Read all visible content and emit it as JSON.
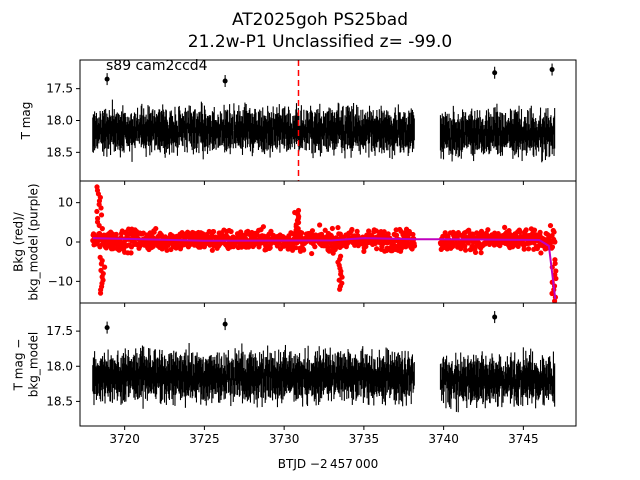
{
  "figure": {
    "title_line1": "AT2025goh  PS25bad",
    "title_line2": "21.2w-P1 Unclassified z= -99.0",
    "annotation": "s89 cam2ccd4",
    "xlabel": "BTJD −2 457 000"
  },
  "colors": {
    "data": "#000000",
    "bkg": "#ff0000",
    "bkg_model": "#bf00bf",
    "marker_line": "#ff0000"
  },
  "chart_data": [
    {
      "type": "scatter",
      "panel": "top",
      "ylabel": "T mag",
      "y_inverted": true,
      "xlim": [
        3717.2,
        3748.3
      ],
      "ylim": [
        18.95,
        17.05
      ],
      "yticks": [
        17.5,
        18.0,
        18.5
      ],
      "ytick_labels": [
        "17.5",
        "18.0",
        "18.5"
      ],
      "vline_x": 3730.9,
      "segments": [
        {
          "x_range": [
            3718.0,
            3738.2
          ],
          "mag_center": 18.15,
          "mag_spread": 0.45
        },
        {
          "x_range": [
            3739.8,
            3747.0
          ],
          "mag_center": 18.2,
          "mag_spread": 0.45
        }
      ],
      "outliers": [
        {
          "x": 3743.2,
          "y": 17.25
        },
        {
          "x": 3718.9,
          "y": 17.35
        },
        {
          "x": 3726.3,
          "y": 17.38
        },
        {
          "x": 3746.8,
          "y": 17.2
        }
      ]
    },
    {
      "type": "scatter",
      "panel": "middle",
      "ylabel": "Bkg (red)/\nbkg_model (purple)",
      "xlim": [
        3717.2,
        3748.3
      ],
      "ylim": [
        -15.5,
        15.5
      ],
      "yticks": [
        10,
        0,
        -10
      ],
      "ytick_labels": [
        "10",
        "0",
        "−10"
      ],
      "series": [
        {
          "name": "Bkg",
          "segments": [
            {
              "x_range": [
                3718.0,
                3738.2
              ],
              "center": 0.5,
              "spread": 6
            },
            {
              "x_range": [
                3739.8,
                3747.0
              ],
              "center": 0.5,
              "spread": 6
            }
          ],
          "spikes": [
            {
              "x": 3718.4,
              "y": 14
            },
            {
              "x": 3718.6,
              "y": -13
            },
            {
              "x": 3730.8,
              "y": 8
            },
            {
              "x": 3733.5,
              "y": -12
            },
            {
              "x": 3746.9,
              "y": -15
            }
          ]
        },
        {
          "name": "bkg_model",
          "points": [
            [
              3718.0,
              1.0
            ],
            [
              3725.0,
              0.3
            ],
            [
              3733.0,
              0.4
            ],
            [
              3735.0,
              1.0
            ],
            [
              3738.2,
              0.7
            ],
            [
              3739.8,
              0.7
            ],
            [
              3746.0,
              0.5
            ],
            [
              3746.6,
              -1.0
            ],
            [
              3747.0,
              -14.5
            ]
          ]
        }
      ]
    },
    {
      "type": "scatter",
      "panel": "bottom",
      "ylabel": "T mag −\nbkg_model",
      "y_inverted": true,
      "xlim": [
        3717.2,
        3748.3
      ],
      "ylim": [
        18.85,
        17.1
      ],
      "yticks": [
        17.5,
        18.0,
        18.5
      ],
      "ytick_labels": [
        "17.5",
        "18.0",
        "18.5"
      ],
      "xticks": [
        3720,
        3725,
        3730,
        3735,
        3740,
        3745
      ],
      "xtick_labels": [
        "3720",
        "3725",
        "3730",
        "3735",
        "3740",
        "3745"
      ],
      "segments": [
        {
          "x_range": [
            3718.0,
            3738.2
          ],
          "mag_center": 18.15,
          "mag_spread": 0.45
        },
        {
          "x_range": [
            3739.8,
            3747.0
          ],
          "mag_center": 18.2,
          "mag_spread": 0.45
        }
      ],
      "outliers": [
        {
          "x": 3743.2,
          "y": 17.3
        },
        {
          "x": 3718.9,
          "y": 17.45
        },
        {
          "x": 3726.3,
          "y": 17.4
        }
      ]
    }
  ]
}
